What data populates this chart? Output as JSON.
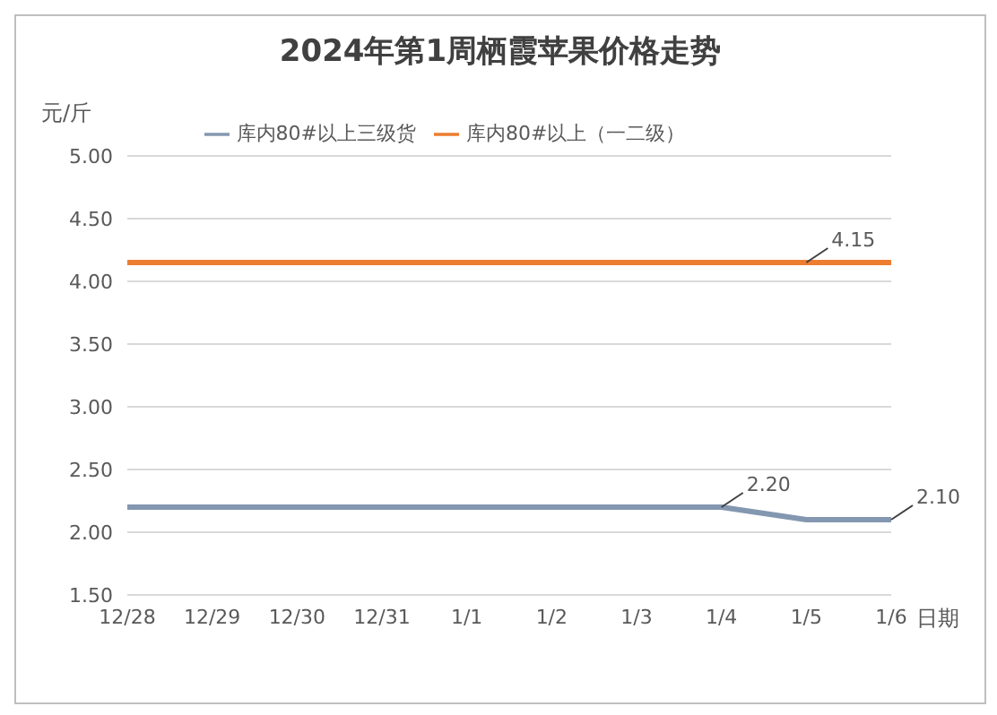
{
  "chart_data": {
    "type": "line",
    "title": "2024年第1周栖霞苹果价格走势",
    "ylabel": "元/斤",
    "xlabel": "日期",
    "categories": [
      "12/28",
      "12/29",
      "12/30",
      "12/31",
      "1/1",
      "1/2",
      "1/3",
      "1/4",
      "1/5",
      "1/6"
    ],
    "series": [
      {
        "name": "库内80#以上三级货",
        "color": "#8497b0",
        "values": [
          2.2,
          2.2,
          2.2,
          2.2,
          2.2,
          2.2,
          2.2,
          2.2,
          2.1,
          2.1
        ],
        "value_labels": [
          null,
          null,
          null,
          null,
          null,
          null,
          null,
          "2.20",
          null,
          "2.10"
        ]
      },
      {
        "name": "库内80#以上（一二级）",
        "color": "#ed7d31",
        "values": [
          4.15,
          4.15,
          4.15,
          4.15,
          4.15,
          4.15,
          4.15,
          4.15,
          4.15,
          4.15
        ],
        "value_labels": [
          null,
          null,
          null,
          null,
          null,
          null,
          null,
          null,
          "4.15",
          null
        ]
      }
    ],
    "ylim": [
      1.5,
      5
    ],
    "yticks": [
      {
        "value": 1.5,
        "label": "1.50"
      },
      {
        "value": 2,
        "label": "2.00"
      },
      {
        "value": 2.5,
        "label": "2.50"
      },
      {
        "value": 3,
        "label": "3.00"
      },
      {
        "value": 3.5,
        "label": "3.50"
      },
      {
        "value": 4,
        "label": "4.00"
      },
      {
        "value": 4.5,
        "label": "4.50"
      },
      {
        "value": 5,
        "label": "5.00"
      }
    ],
    "grid": "y",
    "legend": "top",
    "marker": "none",
    "line_style": "solid"
  }
}
